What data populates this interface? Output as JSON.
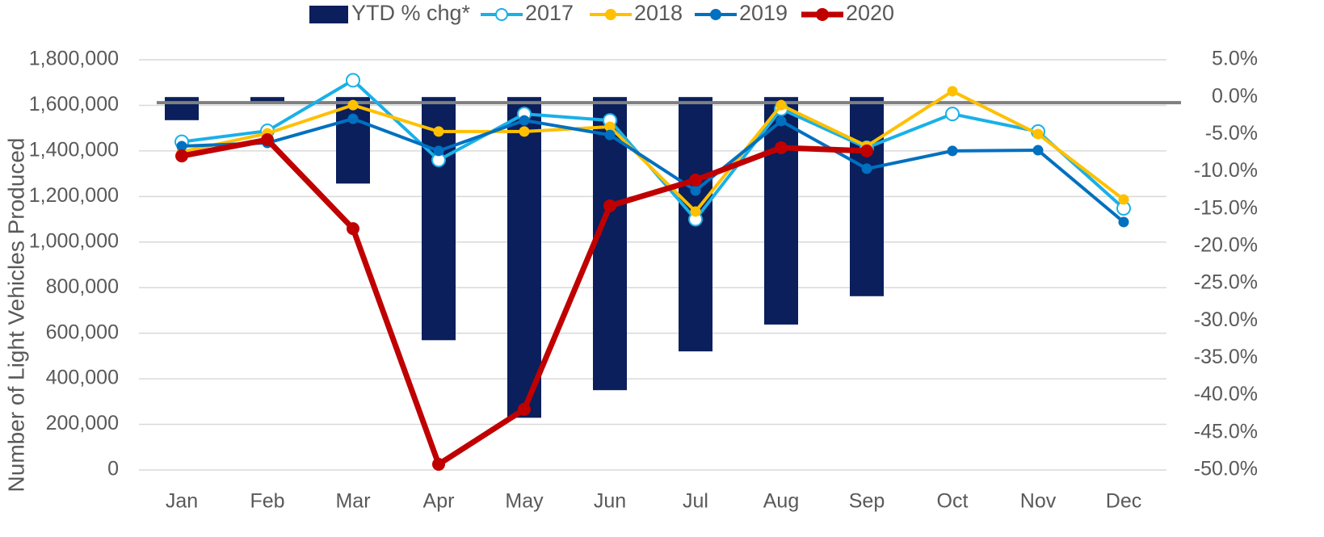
{
  "chart_data": {
    "type": "line",
    "y_label": "Number of Light Vehicles Produced",
    "categories": [
      "Jan",
      "Feb",
      "Mar",
      "Apr",
      "May",
      "Jun",
      "Jul",
      "Aug",
      "Sep",
      "Oct",
      "Nov",
      "Dec"
    ],
    "ylim": [
      0,
      1800000
    ],
    "yticks": [
      0,
      {
        "value": 200000,
        "label": "200,000"
      },
      {
        "value": 400000,
        "label": "400,000"
      },
      {
        "value": 600000,
        "label": "600,000"
      },
      {
        "value": 800000,
        "label": "800,000"
      },
      {
        "value": 1000000,
        "label": "1,000,000"
      },
      {
        "value": 1200000,
        "label": "1,200,000"
      },
      {
        "value": 1400000,
        "label": "1,400,000"
      },
      {
        "value": 1600000,
        "label": "1,600,000"
      },
      {
        "value": 1800000,
        "label": "1,800,000"
      }
    ],
    "y2lim": [
      -50,
      5
    ],
    "y2ticks": [
      {
        "value": 5,
        "label": "5.0%"
      },
      {
        "value": 0,
        "label": "0.0%"
      },
      {
        "value": -5,
        "label": "-5.0%"
      },
      {
        "value": -10,
        "label": "-10.0%"
      },
      {
        "value": -15,
        "label": "-15.0%"
      },
      {
        "value": -20,
        "label": "-20.0%"
      },
      {
        "value": -25,
        "label": "-25.0%"
      },
      {
        "value": -30,
        "label": "-30.0%"
      },
      {
        "value": -35,
        "label": "-35.0%"
      },
      {
        "value": -40,
        "label": "-40.0%"
      },
      {
        "value": -45,
        "label": "-45.0%"
      },
      {
        "value": -50,
        "label": "-50.0%"
      }
    ],
    "grid": true,
    "legend": "top",
    "series": [
      {
        "name": "YTD % chg*",
        "type": "bar",
        "axis": "y2",
        "color": "#0a1f5c",
        "values": [
          -3.1,
          -0.6,
          -11.6,
          -32.6,
          -43.0,
          -39.3,
          -34.1,
          -30.5,
          -26.7,
          null,
          null,
          null
        ]
      },
      {
        "name": "2017",
        "type": "line",
        "color": "#1ab0e8",
        "hollow": true,
        "values": [
          1440000,
          1488000,
          1710000,
          1360000,
          1562000,
          1534000,
          1100000,
          1584000,
          1414000,
          1562000,
          1485000,
          1148000
        ]
      },
      {
        "name": "2018",
        "type": "line",
        "color": "#ffc000",
        "values": [
          1396000,
          1477000,
          1601000,
          1485000,
          1485000,
          1506000,
          1134000,
          1601000,
          1421000,
          1662000,
          1474000,
          1187000
        ]
      },
      {
        "name": "2019",
        "type": "line",
        "color": "#0070c0",
        "values": [
          1421000,
          1435000,
          1541000,
          1400000,
          1534000,
          1470000,
          1226000,
          1531000,
          1322000,
          1400000,
          1403000,
          1088000
        ]
      },
      {
        "name": "2020",
        "type": "line",
        "color": "#c00000",
        "thick": true,
        "values": [
          1378000,
          1449000,
          1059000,
          25000,
          266000,
          1159000,
          1272000,
          1414000,
          1400000,
          null,
          null,
          null
        ]
      }
    ]
  }
}
